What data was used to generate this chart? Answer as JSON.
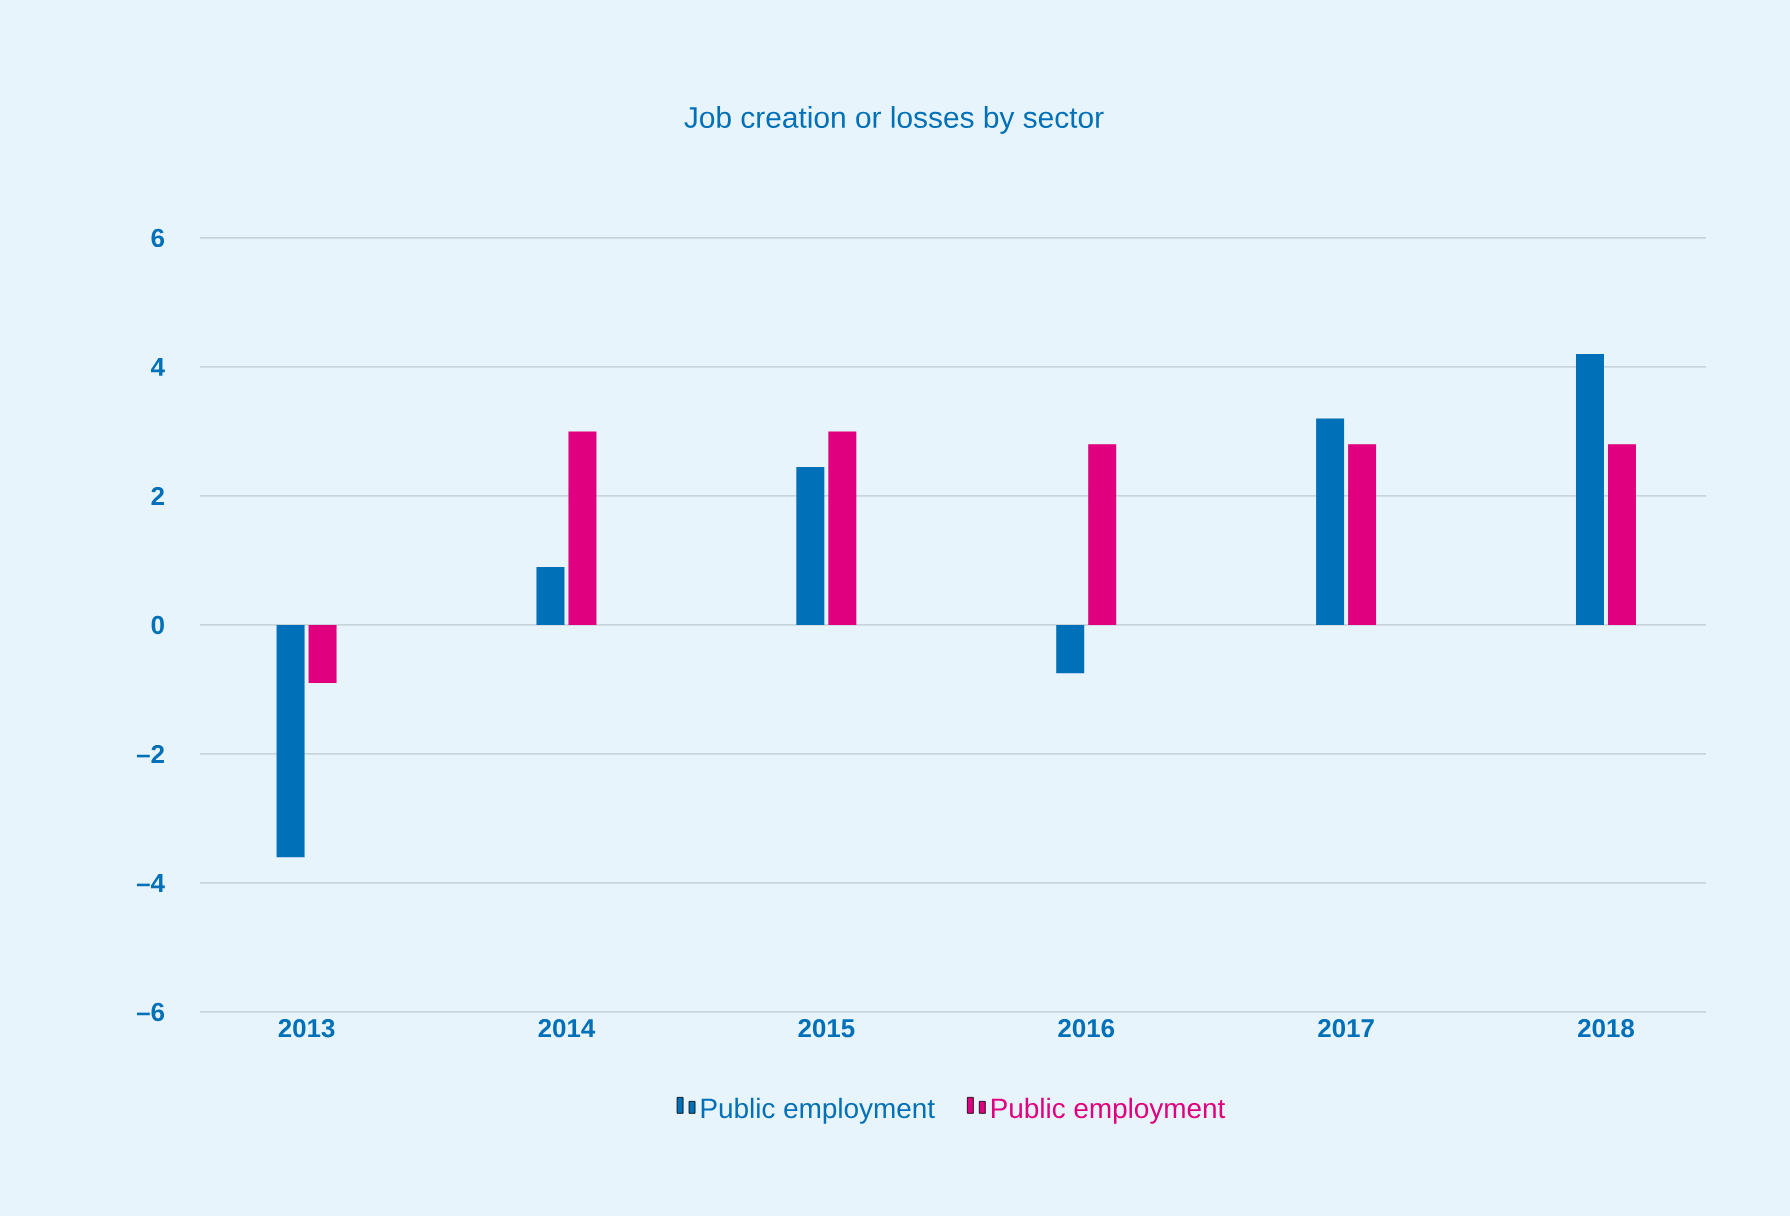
{
  "chart_data": {
    "type": "bar",
    "title": "Job creation or losses by sector",
    "categories": [
      "2013",
      "2014",
      "2015",
      "2016",
      "2017",
      "2018"
    ],
    "series": [
      {
        "name": "Public employment",
        "color": "#0070b8",
        "values": [
          -3.6,
          0.9,
          2.45,
          -0.75,
          3.2,
          4.2
        ]
      },
      {
        "name": "Public employment",
        "color": "#e0007f",
        "values": [
          -0.9,
          3.0,
          3.0,
          2.8,
          2.8,
          2.8
        ]
      }
    ],
    "ylim": [
      -6,
      6
    ],
    "yticks": [
      {
        "value": -6,
        "label": "–6"
      },
      {
        "value": -4,
        "label": "–4"
      },
      {
        "value": -2,
        "label": "–2"
      },
      0,
      2,
      4,
      6
    ],
    "grid": "y",
    "legend": "bottom"
  }
}
